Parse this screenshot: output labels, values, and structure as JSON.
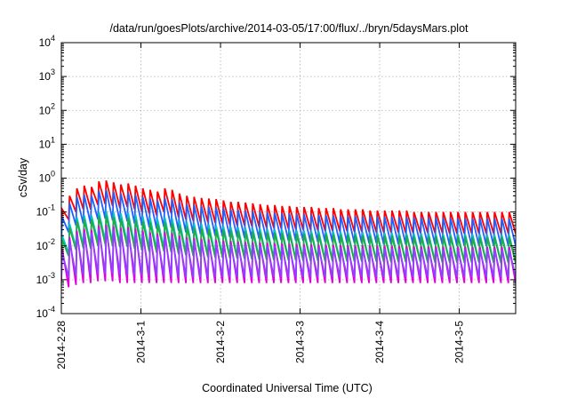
{
  "chart_data": {
    "type": "line",
    "title": "/data/run/goesPlots/archive/2014-03-05/17:00/flux/../bryn/5daysMars.plot",
    "xlabel": "Coordinated Universal Time (UTC)",
    "ylabel": "cSv/day",
    "yscale": "log",
    "ylim": [
      0.0001,
      10000
    ],
    "yticks": [
      {
        "value": 0.0001,
        "base": "10",
        "exp": "-4"
      },
      {
        "value": 0.001,
        "base": "10",
        "exp": "-3"
      },
      {
        "value": 0.01,
        "base": "10",
        "exp": "-2"
      },
      {
        "value": 0.1,
        "base": "10",
        "exp": "-1"
      },
      {
        "value": 1,
        "base": "10",
        "exp": "0"
      },
      {
        "value": 10,
        "base": "10",
        "exp": "1"
      },
      {
        "value": 100,
        "base": "10",
        "exp": "2"
      },
      {
        "value": 1000,
        "base": "10",
        "exp": "3"
      },
      {
        "value": 10000,
        "base": "10",
        "exp": "4"
      }
    ],
    "xlim": [
      "2014-02-28 00:00",
      "2014-03-05 17:00"
    ],
    "xticks": [
      "2014-2-28",
      "2014-3-1",
      "2014-3-2",
      "2014-3-3",
      "2014-3-4",
      "2014-3-5"
    ],
    "grid": true,
    "legend": "none",
    "sawtooth": {
      "cycles": 62,
      "start": "2014-02-28 00:00",
      "end": "2014-03-05 17:00"
    },
    "series": [
      {
        "color": "#ff0000",
        "peaks": [
          0.12,
          0.3,
          0.5,
          0.6,
          0.55,
          0.8,
          0.85,
          0.75,
          0.65,
          0.7,
          0.6,
          0.5,
          0.45,
          0.4,
          0.5,
          0.45,
          0.35,
          0.3,
          0.28,
          0.26,
          0.25,
          0.24,
          0.22,
          0.2,
          0.2,
          0.19,
          0.18,
          0.17,
          0.16,
          0.16,
          0.15,
          0.15,
          0.14,
          0.14,
          0.14,
          0.13,
          0.13,
          0.13,
          0.12,
          0.12,
          0.12,
          0.12,
          0.11,
          0.11,
          0.11,
          0.11,
          0.11,
          0.11,
          0.1,
          0.1,
          0.1,
          0.1,
          0.1,
          0.1,
          0.1,
          0.1,
          0.1,
          0.1,
          0.1,
          0.1,
          0.1,
          0.1
        ],
        "troughs": [
          0.03,
          0.06,
          0.1,
          0.12,
          0.12,
          0.16,
          0.17,
          0.15,
          0.13,
          0.14,
          0.12,
          0.1,
          0.09,
          0.08,
          0.1,
          0.09,
          0.07,
          0.06,
          0.055,
          0.05,
          0.05,
          0.048,
          0.045,
          0.042,
          0.04,
          0.04,
          0.038,
          0.036,
          0.035,
          0.034,
          0.033,
          0.032,
          0.031,
          0.03,
          0.03,
          0.029,
          0.028,
          0.028,
          0.027,
          0.027,
          0.026,
          0.026,
          0.026,
          0.025,
          0.025,
          0.025,
          0.025,
          0.024,
          0.024,
          0.024,
          0.024,
          0.024,
          0.024,
          0.023,
          0.023,
          0.023,
          0.023,
          0.023,
          0.023,
          0.023,
          0.023,
          0.023
        ]
      },
      {
        "color": "#2060ff",
        "peaks": [
          0.07,
          0.18,
          0.28,
          0.32,
          0.3,
          0.42,
          0.45,
          0.4,
          0.35,
          0.38,
          0.32,
          0.28,
          0.25,
          0.22,
          0.26,
          0.24,
          0.19,
          0.17,
          0.16,
          0.15,
          0.14,
          0.135,
          0.13,
          0.12,
          0.115,
          0.11,
          0.105,
          0.1,
          0.097,
          0.095,
          0.092,
          0.09,
          0.088,
          0.086,
          0.084,
          0.082,
          0.08,
          0.079,
          0.078,
          0.077,
          0.076,
          0.075,
          0.074,
          0.073,
          0.072,
          0.071,
          0.07,
          0.07,
          0.069,
          0.068,
          0.068,
          0.067,
          0.067,
          0.066,
          0.066,
          0.065,
          0.065,
          0.065,
          0.064,
          0.064,
          0.064,
          0.063
        ],
        "troughs": [
          0.012,
          0.025,
          0.04,
          0.045,
          0.045,
          0.06,
          0.063,
          0.056,
          0.05,
          0.053,
          0.045,
          0.04,
          0.035,
          0.032,
          0.036,
          0.034,
          0.028,
          0.025,
          0.023,
          0.022,
          0.021,
          0.02,
          0.019,
          0.018,
          0.018,
          0.017,
          0.016,
          0.016,
          0.015,
          0.015,
          0.015,
          0.014,
          0.014,
          0.014,
          0.013,
          0.013,
          0.013,
          0.013,
          0.012,
          0.012,
          0.012,
          0.012,
          0.012,
          0.012,
          0.011,
          0.011,
          0.011,
          0.011,
          0.011,
          0.011,
          0.011,
          0.011,
          0.011,
          0.01,
          0.01,
          0.01,
          0.01,
          0.01,
          0.01,
          0.01,
          0.01,
          0.01
        ]
      },
      {
        "color": "#00c8c8",
        "peaks": [
          0.02,
          0.045,
          0.07,
          0.08,
          0.078,
          0.1,
          0.11,
          0.1,
          0.09,
          0.095,
          0.085,
          0.075,
          0.068,
          0.062,
          0.07,
          0.065,
          0.055,
          0.05,
          0.046,
          0.044,
          0.042,
          0.04,
          0.038,
          0.036,
          0.035,
          0.034,
          0.033,
          0.032,
          0.031,
          0.03,
          0.03,
          0.029,
          0.028,
          0.028,
          0.027,
          0.027,
          0.026,
          0.026,
          0.026,
          0.025,
          0.025,
          0.025,
          0.024,
          0.024,
          0.024,
          0.024,
          0.023,
          0.023,
          0.023,
          0.023,
          0.023,
          0.022,
          0.022,
          0.022,
          0.022,
          0.022,
          0.022,
          0.022,
          0.021,
          0.021,
          0.021,
          0.021
        ],
        "troughs": [
          0.003,
          0.006,
          0.009,
          0.01,
          0.01,
          0.013,
          0.014,
          0.012,
          0.011,
          0.012,
          0.01,
          0.009,
          0.008,
          0.0075,
          0.0085,
          0.008,
          0.0068,
          0.0062,
          0.0058,
          0.0055,
          0.0053,
          0.0051,
          0.005,
          0.0048,
          0.0047,
          0.0046,
          0.0045,
          0.0044,
          0.0043,
          0.0042,
          0.0042,
          0.0041,
          0.004,
          0.004,
          0.0039,
          0.0039,
          0.0038,
          0.0038,
          0.0038,
          0.0037,
          0.0037,
          0.0037,
          0.0036,
          0.0036,
          0.0036,
          0.0036,
          0.0035,
          0.0035,
          0.0035,
          0.0035,
          0.0035,
          0.0034,
          0.0034,
          0.0034,
          0.0034,
          0.0034,
          0.0034,
          0.0034,
          0.0033,
          0.0033,
          0.0033,
          0.0033
        ]
      },
      {
        "color": "#22aa44",
        "peaks": [
          0.015,
          0.035,
          0.055,
          0.062,
          0.06,
          0.075,
          0.08,
          0.072,
          0.065,
          0.068,
          0.06,
          0.054,
          0.049,
          0.045,
          0.05,
          0.047,
          0.04,
          0.037,
          0.034,
          0.033,
          0.032,
          0.031,
          0.03,
          0.029,
          0.028,
          0.027,
          0.026,
          0.026,
          0.025,
          0.025,
          0.024,
          0.024,
          0.023,
          0.023,
          0.023,
          0.022,
          0.022,
          0.022,
          0.021,
          0.021,
          0.021,
          0.021,
          0.02,
          0.02,
          0.02,
          0.02,
          0.02,
          0.02,
          0.019,
          0.019,
          0.019,
          0.019,
          0.019,
          0.019,
          0.019,
          0.019,
          0.018,
          0.018,
          0.018,
          0.018,
          0.018,
          0.018
        ],
        "troughs": [
          0.0025,
          0.005,
          0.0075,
          0.0085,
          0.0083,
          0.01,
          0.011,
          0.0098,
          0.009,
          0.0093,
          0.0083,
          0.0075,
          0.0068,
          0.0063,
          0.0069,
          0.0065,
          0.0057,
          0.0053,
          0.005,
          0.0048,
          0.0046,
          0.0045,
          0.0044,
          0.0043,
          0.0042,
          0.0041,
          0.004,
          0.0039,
          0.0039,
          0.0038,
          0.0038,
          0.0037,
          0.0037,
          0.0036,
          0.0036,
          0.0036,
          0.0035,
          0.0035,
          0.0035,
          0.0034,
          0.0034,
          0.0034,
          0.0034,
          0.0034,
          0.0033,
          0.0033,
          0.0033,
          0.0033,
          0.0033,
          0.0033,
          0.0032,
          0.0032,
          0.0032,
          0.0032,
          0.0032,
          0.0032,
          0.0032,
          0.0032,
          0.0032,
          0.0031,
          0.0031,
          0.0031
        ]
      },
      {
        "color": "#e000e0",
        "peaks": [
          0.008,
          0.018,
          0.028,
          0.032,
          0.03,
          0.04,
          0.042,
          0.038,
          0.034,
          0.036,
          0.032,
          0.028,
          0.025,
          0.023,
          0.026,
          0.024,
          0.02,
          0.018,
          0.017,
          0.016,
          0.0155,
          0.015,
          0.0145,
          0.014,
          0.0135,
          0.013,
          0.0128,
          0.0125,
          0.0122,
          0.012,
          0.0118,
          0.0116,
          0.0114,
          0.0112,
          0.011,
          0.0108,
          0.0107,
          0.0106,
          0.0105,
          0.0104,
          0.0103,
          0.0102,
          0.0101,
          0.01,
          0.01,
          0.0099,
          0.0098,
          0.0098,
          0.0097,
          0.0097,
          0.0096,
          0.0096,
          0.0095,
          0.0095,
          0.0095,
          0.0094,
          0.0094,
          0.0094,
          0.0093,
          0.0093,
          0.0093,
          0.0093
        ],
        "troughs": [
          0.0009,
          0.0006,
          0.0007,
          0.0008,
          0.0008,
          0.0009,
          0.0009,
          0.0009,
          0.0008,
          0.0008,
          0.0008,
          0.0008,
          0.0008,
          0.0008,
          0.0008,
          0.0008,
          0.0008,
          0.0008,
          0.0008,
          0.0008,
          0.0008,
          0.0008,
          0.0008,
          0.0008,
          0.0008,
          0.0008,
          0.0008,
          0.0008,
          0.0008,
          0.0008,
          0.0008,
          0.0008,
          0.0008,
          0.0008,
          0.0008,
          0.0008,
          0.0008,
          0.0008,
          0.0008,
          0.0008,
          0.0008,
          0.0008,
          0.0008,
          0.0008,
          0.0008,
          0.0008,
          0.0008,
          0.0008,
          0.0008,
          0.0008,
          0.0008,
          0.0008,
          0.0008,
          0.0008,
          0.0008,
          0.0008,
          0.0008,
          0.0008,
          0.0008,
          0.0008,
          0.0008,
          0.0008
        ]
      },
      {
        "color": "#9040ff",
        "peaks": [
          0.006,
          0.014,
          0.022,
          0.025,
          0.024,
          0.031,
          0.033,
          0.03,
          0.027,
          0.028,
          0.025,
          0.022,
          0.02,
          0.018,
          0.02,
          0.019,
          0.016,
          0.015,
          0.014,
          0.013,
          0.0125,
          0.012,
          0.0117,
          0.0113,
          0.011,
          0.0107,
          0.0104,
          0.0102,
          0.01,
          0.0098,
          0.0096,
          0.0094,
          0.0093,
          0.0092,
          0.009,
          0.0089,
          0.0088,
          0.0087,
          0.0086,
          0.0085,
          0.0085,
          0.0084,
          0.0083,
          0.0083,
          0.0082,
          0.0082,
          0.0081,
          0.0081,
          0.008,
          0.008,
          0.008,
          0.0079,
          0.0079,
          0.0079,
          0.0078,
          0.0078,
          0.0078,
          0.0078,
          0.0077,
          0.0077,
          0.0077,
          0.0077
        ],
        "troughs": [
          0.0012,
          0.0012,
          0.0013,
          0.0014,
          0.0014,
          0.0015,
          0.0015,
          0.0015,
          0.0014,
          0.0014,
          0.0014,
          0.0013,
          0.0013,
          0.0013,
          0.0013,
          0.0013,
          0.0012,
          0.0012,
          0.0012,
          0.0012,
          0.0012,
          0.0012,
          0.0012,
          0.0012,
          0.0012,
          0.0012,
          0.0012,
          0.0012,
          0.0012,
          0.0012,
          0.0012,
          0.0012,
          0.0012,
          0.0012,
          0.0012,
          0.0012,
          0.0012,
          0.0012,
          0.0012,
          0.0012,
          0.0012,
          0.0012,
          0.0012,
          0.0012,
          0.0012,
          0.0012,
          0.0012,
          0.0012,
          0.0012,
          0.0012,
          0.0012,
          0.0012,
          0.0012,
          0.0012,
          0.0012,
          0.0012,
          0.0012,
          0.0012,
          0.0012,
          0.0012,
          0.0012,
          0.0012
        ]
      }
    ]
  }
}
